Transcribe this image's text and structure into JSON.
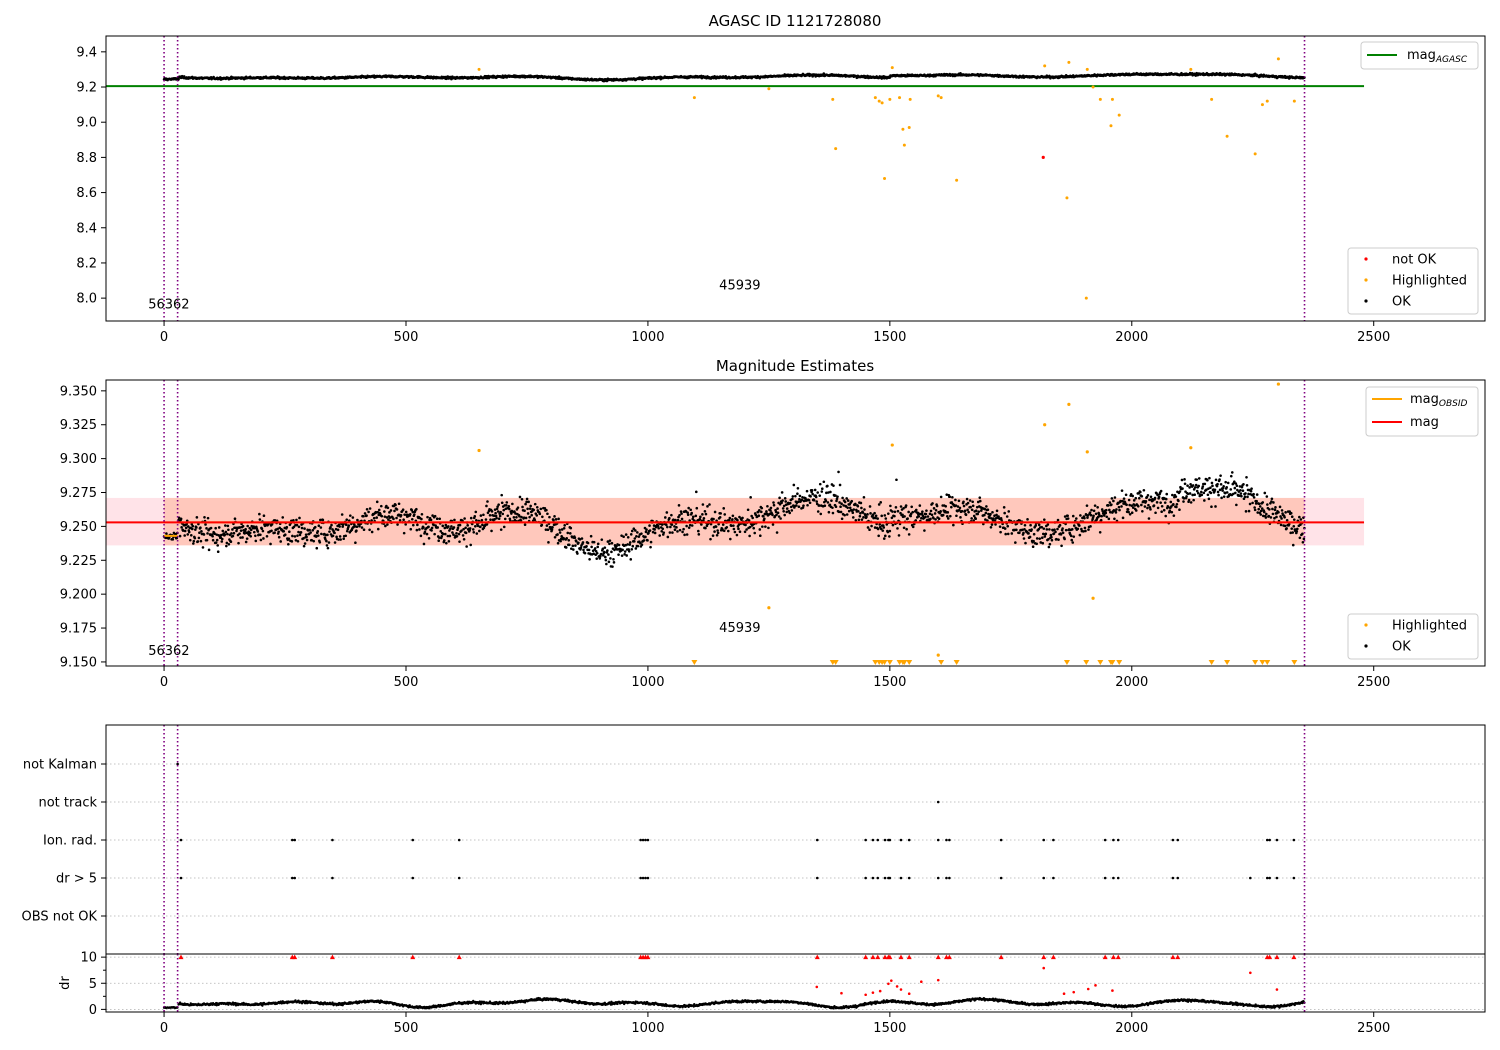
{
  "figure": {
    "title_top": "AGASC ID 1121728080",
    "title_middle": "Magnitude Estimates"
  },
  "colors": {
    "ok": "#000000",
    "highlighted": "#ffa500",
    "not_ok": "#ff0000",
    "agasc_line": "#008000",
    "mean_line": "#ff0000",
    "obsid_line": "#ffa500",
    "band_outer": "#ffc0cb",
    "band_inner": "#ffa07a",
    "vline": "#800080",
    "grid": "#b0b0b0"
  },
  "chart_data": [
    {
      "id": "agasc_panel",
      "type": "scatter",
      "title": "AGASC ID 1121728080",
      "xlim": [
        -120,
        2730
      ],
      "ylim": [
        7.87,
        9.49
      ],
      "x_ticks": [
        0,
        500,
        1000,
        1500,
        2000,
        2500
      ],
      "y_ticks": [
        8.0,
        8.2,
        8.4,
        8.6,
        8.8,
        9.0,
        9.2,
        9.4
      ],
      "y_tick_labels": [
        "8.0",
        "8.2",
        "8.4",
        "8.6",
        "8.8",
        "9.0",
        "9.2",
        "9.4"
      ],
      "legend_upper": [
        {
          "label": "mag",
          "sub": "AGASC",
          "color": "#008000"
        }
      ],
      "legend_lower": [
        {
          "label": "not OK",
          "color": "#ff0000"
        },
        {
          "label": "Highlighted",
          "color": "#ffa500"
        },
        {
          "label": "OK",
          "color": "#000000"
        }
      ],
      "agasc_mag": 9.205,
      "agasc_x_range": [
        -120,
        2480
      ],
      "annotations": [
        {
          "text": "56362",
          "x": 10,
          "y": 7.94
        },
        {
          "text": "45939",
          "x": 1190,
          "y": 8.05
        }
      ],
      "vlines": [
        0,
        28,
        2357
      ],
      "ok_mean_segments": [
        {
          "x": [
            0,
            30
          ],
          "mean": 9.245,
          "spread": 0.01
        },
        {
          "x": [
            30,
            2357
          ],
          "mean": 9.255,
          "spread": 0.018
        }
      ],
      "highlighted_points": [
        {
          "x": 651,
          "y": 9.3
        },
        {
          "x": 1096,
          "y": 9.14
        },
        {
          "x": 1250,
          "y": 9.19
        },
        {
          "x": 1382,
          "y": 9.13
        },
        {
          "x": 1388,
          "y": 8.85
        },
        {
          "x": 1470,
          "y": 9.14
        },
        {
          "x": 1478,
          "y": 9.12
        },
        {
          "x": 1484,
          "y": 9.11
        },
        {
          "x": 1489,
          "y": 8.68
        },
        {
          "x": 1500,
          "y": 9.13
        },
        {
          "x": 1505,
          "y": 9.31
        },
        {
          "x": 1520,
          "y": 9.14
        },
        {
          "x": 1527,
          "y": 8.96
        },
        {
          "x": 1530,
          "y": 8.87
        },
        {
          "x": 1540,
          "y": 8.97
        },
        {
          "x": 1542,
          "y": 9.13
        },
        {
          "x": 1600,
          "y": 9.15
        },
        {
          "x": 1606,
          "y": 9.14
        },
        {
          "x": 1638,
          "y": 8.67
        },
        {
          "x": 1820,
          "y": 9.32
        },
        {
          "x": 1866,
          "y": 8.57
        },
        {
          "x": 1870,
          "y": 9.34
        },
        {
          "x": 1906,
          "y": 8.0
        },
        {
          "x": 1908,
          "y": 9.3
        },
        {
          "x": 1920,
          "y": 9.2
        },
        {
          "x": 1935,
          "y": 9.13
        },
        {
          "x": 1957,
          "y": 8.98
        },
        {
          "x": 1960,
          "y": 9.13
        },
        {
          "x": 1974,
          "y": 9.04
        },
        {
          "x": 2122,
          "y": 9.3
        },
        {
          "x": 2165,
          "y": 9.13
        },
        {
          "x": 2197,
          "y": 8.92
        },
        {
          "x": 2255,
          "y": 8.82
        },
        {
          "x": 2270,
          "y": 9.1
        },
        {
          "x": 2280,
          "y": 9.12
        },
        {
          "x": 2303,
          "y": 9.36
        },
        {
          "x": 2336,
          "y": 9.12
        }
      ],
      "not_ok_points": [
        {
          "x": 1817,
          "y": 8.8
        }
      ]
    },
    {
      "id": "estimates_panel",
      "type": "scatter",
      "title": "Magnitude Estimates",
      "xlim": [
        -120,
        2730
      ],
      "ylim": [
        9.147,
        9.358
      ],
      "x_ticks": [
        0,
        500,
        1000,
        1500,
        2000,
        2500
      ],
      "y_ticks": [
        9.15,
        9.175,
        9.2,
        9.225,
        9.25,
        9.275,
        9.3,
        9.325,
        9.35
      ],
      "y_tick_labels": [
        "9.150",
        "9.175",
        "9.200",
        "9.225",
        "9.250",
        "9.275",
        "9.300",
        "9.325",
        "9.350"
      ],
      "legend_upper": [
        {
          "label": "mag",
          "sub": "OBSID",
          "color": "#ffa500"
        },
        {
          "label": "mag",
          "sub": "",
          "color": "#ff0000"
        }
      ],
      "legend_lower": [
        {
          "label": "Highlighted",
          "color": "#ffa500"
        },
        {
          "label": "OK",
          "color": "#000000"
        }
      ],
      "mean_mag": 9.253,
      "mean_x_range": [
        -120,
        2480
      ],
      "band_outer": [
        9.236,
        9.271
      ],
      "band_inner_x": [
        0,
        2357
      ],
      "obsid_segments": [
        {
          "x": [
            0,
            28
          ],
          "y": 9.243
        },
        {
          "x": [
            28,
            2357
          ],
          "y": 9.253
        }
      ],
      "annotations": [
        {
          "text": "56362",
          "x": 10,
          "y": 9.155
        },
        {
          "text": "45939",
          "x": 1190,
          "y": 9.172
        }
      ],
      "vlines": [
        0,
        28,
        2357
      ],
      "highlighted_points": [
        {
          "x": 651,
          "y": 9.306
        },
        {
          "x": 1250,
          "y": 9.19
        },
        {
          "x": 1505,
          "y": 9.31
        },
        {
          "x": 1600,
          "y": 9.155
        },
        {
          "x": 1820,
          "y": 9.325
        },
        {
          "x": 1870,
          "y": 9.34
        },
        {
          "x": 1908,
          "y": 9.305
        },
        {
          "x": 1920,
          "y": 9.197
        },
        {
          "x": 2122,
          "y": 9.308
        },
        {
          "x": 2303,
          "y": 9.355
        }
      ],
      "clipped_markers_x": [
        1096,
        1382,
        1388,
        1470,
        1478,
        1484,
        1489,
        1500,
        1520,
        1527,
        1530,
        1540,
        1606,
        1638,
        1866,
        1906,
        1935,
        1957,
        1960,
        1974,
        2165,
        2197,
        2255,
        2270,
        2280,
        2336
      ]
    },
    {
      "id": "flags_panel",
      "type": "scatter",
      "xlim": [
        -120,
        2730
      ],
      "categories": [
        "not Kalman",
        "not track",
        "Ion. rad.",
        "dr > 5",
        "OBS not OK"
      ],
      "vlines": [
        0,
        28,
        2357
      ],
      "flags": {
        "not Kalman": [
          28
        ],
        "not track": [
          1600
        ],
        "Ion. rad.": [
          35,
          265,
          270,
          348,
          514,
          610,
          985,
          990,
          995,
          1000,
          1350,
          1450,
          1465,
          1475,
          1490,
          1497,
          1500,
          1523,
          1540,
          1600,
          1617,
          1623,
          1730,
          1818,
          1838,
          1945,
          1962,
          1972,
          2085,
          2095,
          2280,
          2285,
          2300,
          2335
        ],
        "dr > 5": [
          35,
          265,
          270,
          348,
          514,
          610,
          985,
          990,
          995,
          1000,
          1350,
          1450,
          1465,
          1475,
          1490,
          1497,
          1500,
          1523,
          1540,
          1600,
          1617,
          1623,
          1730,
          1818,
          1838,
          1945,
          1962,
          1972,
          2085,
          2095,
          2245,
          2280,
          2285,
          2300,
          2335
        ],
        "OBS not OK": []
      }
    },
    {
      "id": "dr_panel",
      "type": "scatter",
      "ylabel": "dr",
      "xlim": [
        -120,
        2730
      ],
      "ylim": [
        -0.5,
        10.6
      ],
      "y_ticks": [
        0,
        5,
        10
      ],
      "y_tick_labels": [
        "0",
        "5",
        "10"
      ],
      "x_ticks": [
        0,
        500,
        1000,
        1500,
        2000,
        2500
      ],
      "vlines": [
        0,
        28,
        2357
      ],
      "ok_segments": [
        {
          "x": [
            0,
            28
          ],
          "mean": 0.3
        },
        {
          "x": [
            28,
            2357
          ],
          "mean": 1.2
        }
      ],
      "red_points": [
        {
          "x": 1349,
          "y": 4.3
        },
        {
          "x": 1400,
          "y": 3.1
        },
        {
          "x": 1450,
          "y": 2.8
        },
        {
          "x": 1465,
          "y": 3.2
        },
        {
          "x": 1480,
          "y": 3.5
        },
        {
          "x": 1497,
          "y": 4.9
        },
        {
          "x": 1503,
          "y": 5.5
        },
        {
          "x": 1515,
          "y": 4.4
        },
        {
          "x": 1523,
          "y": 3.8
        },
        {
          "x": 1540,
          "y": 3.0
        },
        {
          "x": 1565,
          "y": 5.3
        },
        {
          "x": 1600,
          "y": 5.6
        },
        {
          "x": 1818,
          "y": 7.9
        },
        {
          "x": 1860,
          "y": 3.0
        },
        {
          "x": 1880,
          "y": 3.3
        },
        {
          "x": 1910,
          "y": 3.9
        },
        {
          "x": 1925,
          "y": 4.6
        },
        {
          "x": 1960,
          "y": 3.6
        },
        {
          "x": 2245,
          "y": 7.0
        },
        {
          "x": 2300,
          "y": 3.8
        }
      ],
      "clipped_x": [
        35,
        265,
        270,
        348,
        514,
        610,
        985,
        990,
        995,
        1000,
        1350,
        1450,
        1465,
        1475,
        1490,
        1497,
        1500,
        1523,
        1540,
        1600,
        1617,
        1623,
        1730,
        1818,
        1838,
        1945,
        1962,
        1972,
        2085,
        2095,
        2280,
        2285,
        2300,
        2335
      ]
    }
  ]
}
